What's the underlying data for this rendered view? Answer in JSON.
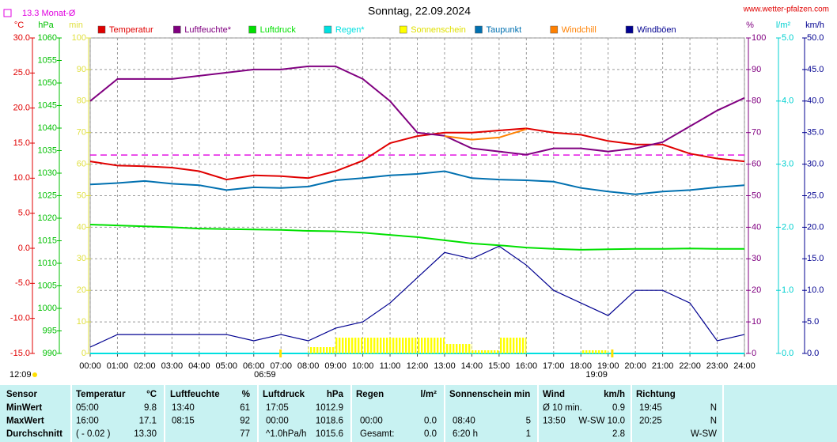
{
  "chart_data": {
    "type": "line",
    "title": "Sonntag, 22.09.2024",
    "source": "www.wetter-pfalzen.com",
    "xlim": [
      0,
      24
    ],
    "xticks": [
      {
        "value": 0,
        "label": "00:00"
      },
      {
        "value": 1,
        "label": "01:00"
      },
      {
        "value": 2,
        "label": "02:00"
      },
      {
        "value": 3,
        "label": "03:00"
      },
      {
        "value": 4,
        "label": "04:00"
      },
      {
        "value": 5,
        "label": "05:00"
      },
      {
        "value": 6,
        "label": "06:00"
      },
      {
        "value": 7,
        "label": "07:00"
      },
      {
        "value": 8,
        "label": "08:00"
      },
      {
        "value": 9,
        "label": "09:00"
      },
      {
        "value": 10,
        "label": "10:00"
      },
      {
        "value": 11,
        "label": "11:00"
      },
      {
        "value": 12,
        "label": "12:00"
      },
      {
        "value": 13,
        "label": "13:00"
      },
      {
        "value": 14,
        "label": "14:00"
      },
      {
        "value": 15,
        "label": "15:00"
      },
      {
        "value": 16,
        "label": "16:00"
      },
      {
        "value": 17,
        "label": "17:00"
      },
      {
        "value": 18,
        "label": "18:00"
      },
      {
        "value": 19,
        "label": "19:00"
      },
      {
        "value": 20,
        "label": "20:00"
      },
      {
        "value": 21,
        "label": "21:00"
      },
      {
        "value": 22,
        "label": "22:00"
      },
      {
        "value": 23,
        "label": "23:00"
      },
      {
        "value": 24,
        "label": "24:00"
      }
    ],
    "grid": true,
    "axes": [
      {
        "label": "°C",
        "color": "#e00000",
        "lim": [
          -15,
          30
        ],
        "ticks": [
          {
            "value": -15,
            "label": "-15.0"
          },
          {
            "value": -10,
            "label": "-10.0"
          },
          {
            "value": -5,
            "label": "-5.0"
          },
          {
            "value": 0,
            "label": "0.0"
          },
          {
            "value": 5,
            "label": "5.0"
          },
          {
            "value": 10,
            "label": "10.0"
          },
          {
            "value": 15,
            "label": "15.0"
          },
          {
            "value": 20,
            "label": "20.0"
          },
          {
            "value": 25,
            "label": "25.0"
          },
          {
            "value": 30,
            "label": "30.0"
          }
        ]
      },
      {
        "label": "hPa",
        "color": "#00c000",
        "lim": [
          990,
          1060
        ],
        "ticks": [
          990,
          995,
          1000,
          1005,
          1010,
          1015,
          1020,
          1025,
          1030,
          1035,
          1040,
          1045,
          1050,
          1055,
          1060
        ]
      },
      {
        "label": "min",
        "color": "#e0e040",
        "lim": [
          0,
          100
        ],
        "ticks": [
          0,
          10,
          20,
          30,
          40,
          50,
          60,
          70,
          80,
          90,
          100
        ]
      },
      {
        "label": "%",
        "color": "#800080",
        "lim": [
          0,
          100
        ],
        "ticks": [
          0,
          10,
          20,
          30,
          40,
          50,
          60,
          70,
          80,
          90,
          100
        ]
      },
      {
        "label": "l/m²",
        "color": "#00d0d0",
        "lim": [
          0,
          5
        ],
        "ticks": [
          {
            "value": 0,
            "label": "0.0"
          },
          {
            "value": 1,
            "label": "1.0"
          },
          {
            "value": 2,
            "label": "2.0"
          },
          {
            "value": 3,
            "label": "3.0"
          },
          {
            "value": 4,
            "label": "4.0"
          },
          {
            "value": 5,
            "label": "5.0"
          }
        ]
      },
      {
        "label": "km/h",
        "color": "#000090",
        "lim": [
          0,
          50
        ],
        "ticks": [
          {
            "value": 0,
            "label": "0.0"
          },
          {
            "value": 5,
            "label": "5.0"
          },
          {
            "value": 10,
            "label": "10.0"
          },
          {
            "value": 15,
            "label": "15.0"
          },
          {
            "value": 20,
            "label": "20.0"
          },
          {
            "value": 25,
            "label": "25.0"
          },
          {
            "value": 30,
            "label": "30.0"
          },
          {
            "value": 35,
            "label": "35.0"
          },
          {
            "value": 40,
            "label": "40.0"
          },
          {
            "value": 45,
            "label": "45.0"
          },
          {
            "value": 50,
            "label": "50.0"
          }
        ]
      }
    ],
    "x": [
      0,
      1,
      2,
      3,
      4,
      5,
      6,
      7,
      8,
      9,
      10,
      11,
      12,
      13,
      14,
      15,
      16,
      17,
      18,
      19,
      20,
      21,
      22,
      23,
      24
    ],
    "series": [
      {
        "name": "Temperatur",
        "color": "#e00000",
        "axis": 0,
        "values": [
          12.4,
          11.8,
          11.7,
          11.5,
          11.0,
          9.8,
          10.4,
          10.3,
          10.0,
          11.0,
          12.5,
          15.0,
          16.0,
          16.5,
          16.5,
          16.8,
          17.1,
          16.5,
          16.2,
          15.3,
          14.8,
          14.8,
          13.5,
          12.8,
          12.4
        ]
      },
      {
        "name": "Luftfeuchte*",
        "color": "#800080",
        "axis": 3,
        "values": [
          80,
          87,
          87,
          87,
          88,
          89,
          90,
          90,
          91,
          91,
          87,
          80,
          70,
          69,
          65,
          64,
          63,
          65,
          65,
          64,
          65,
          67,
          72,
          77,
          81
        ]
      },
      {
        "name": "Luftdruck",
        "color": "#00e000",
        "axis": 1,
        "values": [
          1018.6,
          1018.4,
          1018.2,
          1018.0,
          1017.7,
          1017.6,
          1017.5,
          1017.4,
          1017.2,
          1017.1,
          1016.8,
          1016.3,
          1015.8,
          1015.1,
          1014.4,
          1014.0,
          1013.5,
          1013.2,
          1013.0,
          1013.1,
          1013.2,
          1013.2,
          1013.3,
          1013.2,
          1013.2
        ]
      },
      {
        "name": "Regen*",
        "color": "#00e0e0",
        "axis": 4,
        "values": [
          0,
          0,
          0,
          0,
          0,
          0,
          0,
          0,
          0,
          0,
          0,
          0,
          0,
          0,
          0,
          0,
          0,
          0,
          0,
          0,
          0,
          0,
          0,
          0,
          0
        ]
      },
      {
        "name": "Sonnenschein",
        "color": "#ffff00",
        "axis": 2,
        "type": "bar",
        "values": [
          0,
          0,
          0,
          0,
          0,
          0,
          0,
          0,
          2,
          5,
          5,
          5,
          5,
          3,
          1,
          5,
          0,
          0,
          1,
          0,
          0,
          0,
          0,
          0,
          0
        ]
      },
      {
        "name": "Taupunkt",
        "color": "#0070b0",
        "axis": 0,
        "values": [
          9.1,
          9.3,
          9.6,
          9.2,
          9.0,
          8.3,
          8.7,
          8.6,
          8.8,
          9.7,
          10.0,
          10.4,
          10.6,
          11.0,
          10.0,
          9.8,
          9.7,
          9.5,
          8.6,
          8.1,
          7.7,
          8.1,
          8.3,
          8.7,
          9.0
        ]
      },
      {
        "name": "Windchill",
        "color": "#ff8000",
        "axis": 0,
        "values": [
          null,
          null,
          null,
          null,
          null,
          null,
          null,
          null,
          null,
          null,
          null,
          null,
          null,
          16.0,
          15.5,
          15.8,
          17.0,
          null,
          null,
          null,
          null,
          null,
          null,
          null,
          null
        ]
      },
      {
        "name": "Windböen",
        "color": "#000090",
        "axis": 5,
        "values": [
          1,
          3,
          3,
          3,
          3,
          3,
          2,
          3,
          2,
          4,
          5,
          8,
          12,
          16,
          15,
          17,
          14,
          10,
          8,
          6,
          10,
          10,
          8,
          2,
          3
        ]
      }
    ],
    "monthly_mean": {
      "label": "13.3 Monat-Ø",
      "value": 13.3,
      "axis": 0,
      "color": "#e000e0"
    },
    "sun": {
      "daylength": "12:09",
      "sunrise": {
        "label": "06:59",
        "x": 6.983
      },
      "sunset": {
        "label": "19:09",
        "x": 19.15
      }
    }
  },
  "table": {
    "header": [
      "Sensor",
      "Temperatur",
      "°C",
      "Luftfeuchte",
      "%",
      "Luftdruck",
      "hPa",
      "Regen",
      "l/m²",
      "Sonnenschein min",
      "Wind",
      "km/h",
      "Richtung"
    ],
    "rows": [
      {
        "label": "MinWert",
        "cells": [
          "05:00",
          "9.8",
          "13:40",
          "61",
          "17:05",
          "1012.9",
          null,
          null,
          null,
          null,
          "Ø 10 min.",
          "0.9",
          "19:45",
          "N"
        ]
      },
      {
        "label": "MaxWert",
        "cells": [
          "16:00",
          "17.1",
          "08:15",
          "92",
          "00:00",
          "1018.6",
          "00:00",
          "0.0",
          "08:40",
          "5",
          "13:50",
          "W-SW 10.0",
          "20:25",
          "N"
        ]
      },
      {
        "label": "Durchschnitt",
        "cells": [
          "( - 0.02 )",
          "13.30",
          null,
          "77",
          "^1.0hPa/h",
          "1015.6",
          "Gesamt:",
          "0.0",
          "6:20 h",
          "1",
          null,
          "2.8",
          null,
          "W-SW"
        ]
      }
    ]
  }
}
